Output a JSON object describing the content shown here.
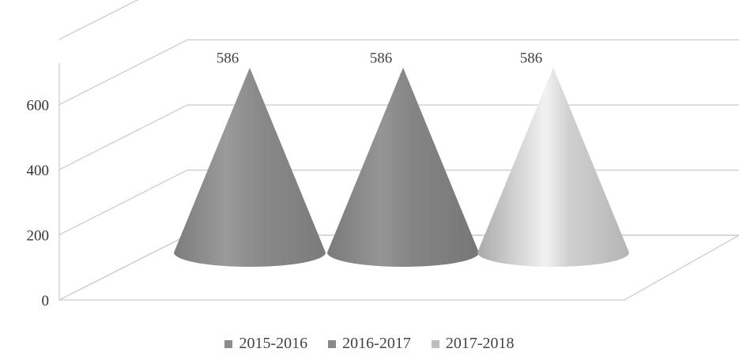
{
  "chart_data": {
    "type": "bar",
    "shape": "3d-cone",
    "categories": [
      "2015-2016",
      "2016-2017",
      "2017-2018"
    ],
    "values": [
      586,
      586,
      586
    ],
    "data_labels": [
      "586",
      "586",
      "586"
    ],
    "ylim": [
      0,
      800
    ],
    "yticks": [
      0,
      200,
      400,
      600
    ],
    "ytick_labels": [
      "0",
      "200",
      "400",
      "600"
    ],
    "grid": true,
    "legend_position": "bottom",
    "colors": {
      "2015-2016": "#8c8c8c",
      "2016-2017": "#8a8a8a",
      "2017-2018": "#bdbdbd"
    }
  }
}
